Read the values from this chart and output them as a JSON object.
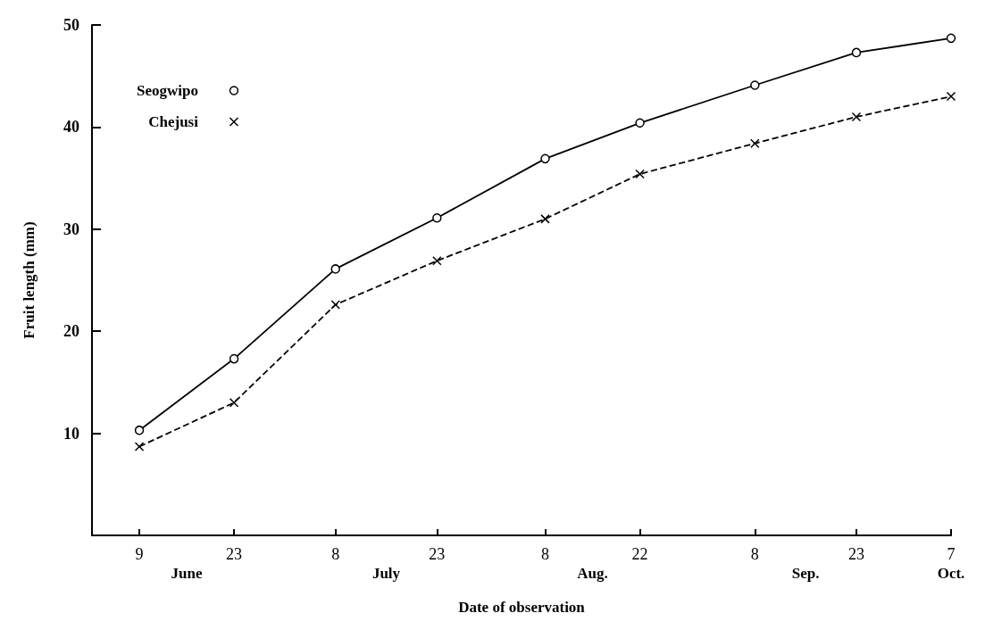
{
  "chart_data": {
    "type": "line",
    "xlabel": "Date of observation",
    "ylabel": "Fruit length (mm)",
    "x": [
      "--06-09",
      "--06-23",
      "--07-08",
      "--07-23",
      "--08-08",
      "--08-22",
      "--09-08",
      "--09-23",
      "--10-07"
    ],
    "xlim": [
      "--06-02",
      "--10-07"
    ],
    "xticks": [
      {
        "value": "--06-09",
        "label": "9"
      },
      {
        "value": "--06-23",
        "label": "23"
      },
      {
        "value": "--07-08",
        "label": "8"
      },
      {
        "value": "--07-23",
        "label": "23"
      },
      {
        "value": "--08-08",
        "label": "8"
      },
      {
        "value": "--08-22",
        "label": "22"
      },
      {
        "value": "--09-08",
        "label": "8"
      },
      {
        "value": "--09-23",
        "label": "23"
      },
      {
        "value": "--10-07",
        "label": "7"
      }
    ],
    "ylim": [
      0,
      50
    ],
    "yticks": [
      10,
      20,
      30,
      40,
      50
    ],
    "series": [
      {
        "name": "Seogwipo",
        "color": "#000000",
        "marker": "circle",
        "line_style": "solid",
        "values": [
          10.3,
          17.3,
          26.1,
          31.1,
          36.9,
          40.4,
          44.1,
          47.3,
          48.7
        ]
      },
      {
        "name": "Chejusi",
        "color": "#000000",
        "marker": "cross",
        "line_style": "dashed",
        "values": [
          8.7,
          13.0,
          22.6,
          26.9,
          31.0,
          35.4,
          38.4,
          41.0,
          43.0
        ]
      }
    ],
    "annotations": [
      "June",
      "July",
      "Aug.",
      "Sep.",
      "Oct."
    ],
    "legend": "top left",
    "grid": false
  }
}
